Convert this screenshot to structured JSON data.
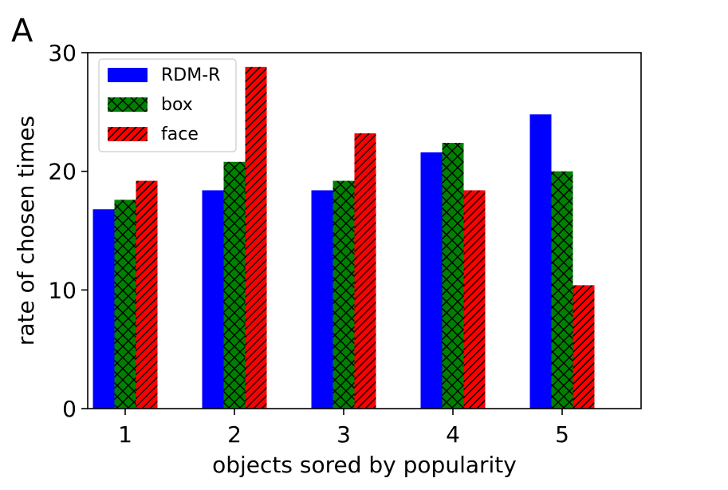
{
  "panel_label": "A",
  "chart_data": {
    "type": "bar",
    "categories": [
      "1",
      "2",
      "3",
      "4",
      "5"
    ],
    "series": [
      {
        "name": "RDM-R",
        "values": [
          16.8,
          18.4,
          18.4,
          21.6,
          24.8
        ],
        "color": "#0000ff",
        "pattern": "none"
      },
      {
        "name": "box",
        "values": [
          17.6,
          20.8,
          19.2,
          22.4,
          20.0
        ],
        "color": "#008000",
        "pattern": "crosshatch"
      },
      {
        "name": "face",
        "values": [
          19.2,
          28.8,
          23.2,
          18.4,
          10.4
        ],
        "color": "#ff0000",
        "pattern": "diagonal"
      }
    ],
    "xlabel": "objects sored by popularity",
    "ylabel": "rate of chosen times",
    "ylim": [
      0,
      30
    ],
    "yticks": [
      "0",
      "10",
      "20",
      "30"
    ],
    "grid": false,
    "legend_position": "top-left"
  }
}
